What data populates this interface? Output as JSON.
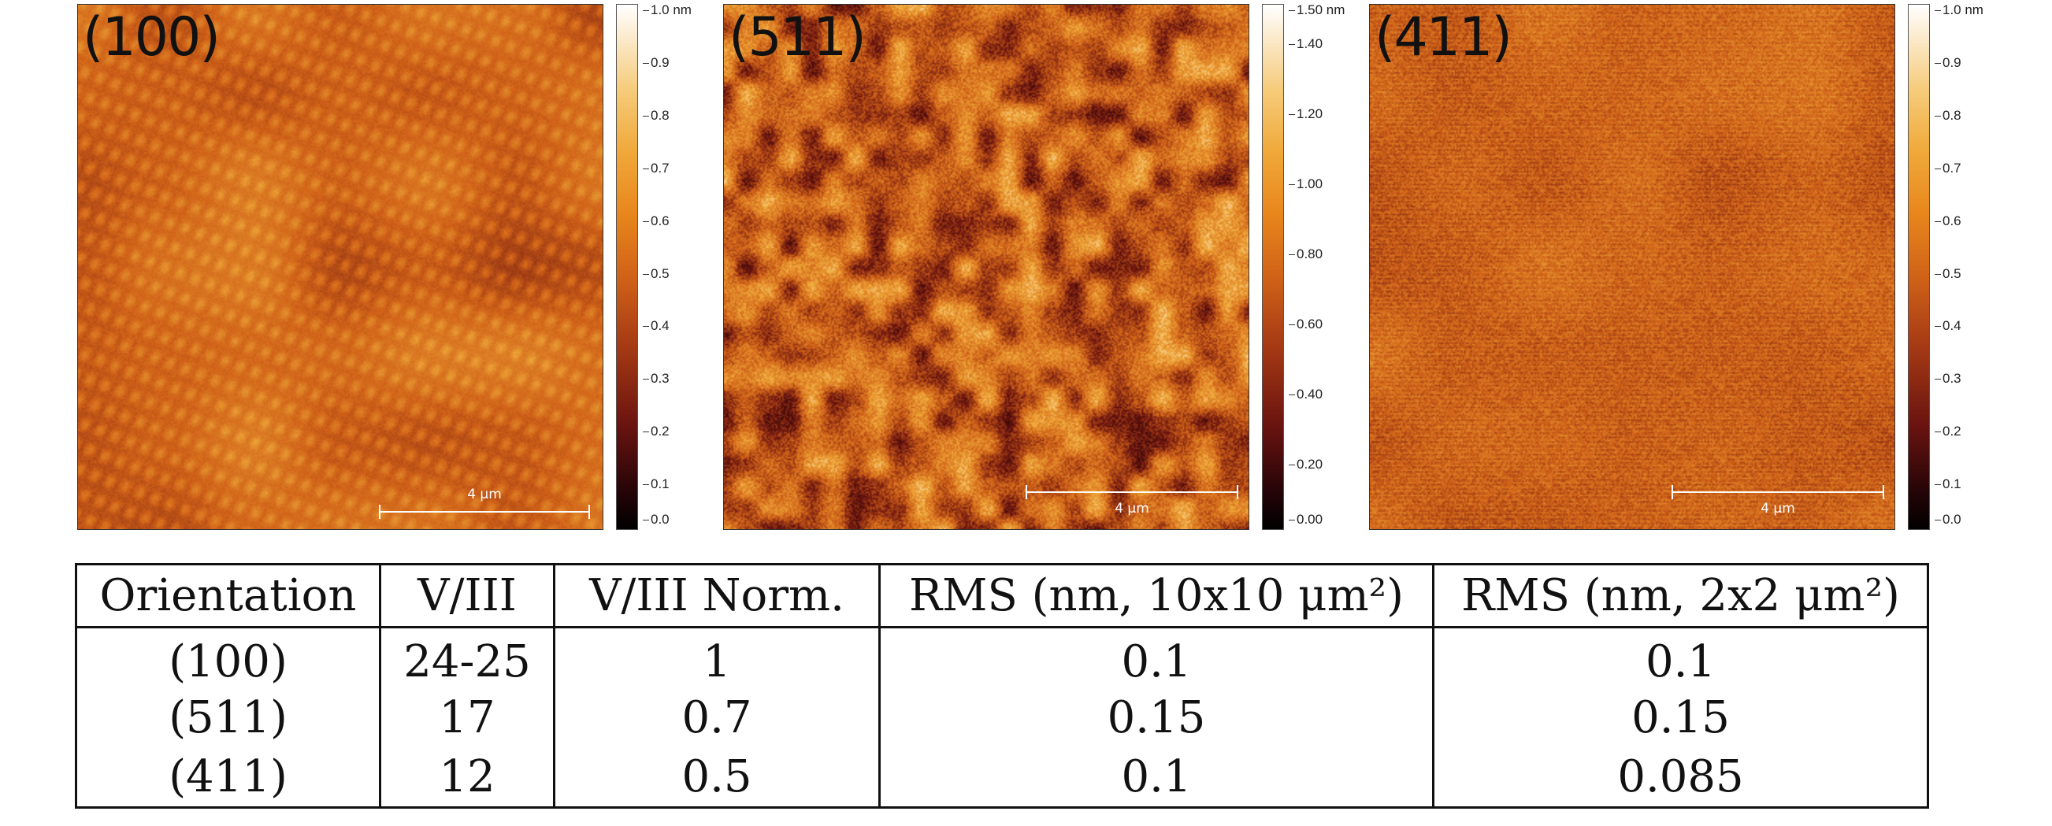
{
  "figure": {
    "panels": [
      {
        "label": "(100)",
        "scale_bar": "4 µm",
        "colorbar_top": "1.0 nm",
        "colorbar_ticks": [
          "0.9",
          "0.8",
          "0.7",
          "0.6",
          "0.5",
          "0.4",
          "0.3",
          "0.2",
          "0.1",
          "0.0"
        ],
        "texture": "terraces"
      },
      {
        "label": "(511)",
        "scale_bar": "4 µm",
        "colorbar_top": "1.50 nm",
        "colorbar_ticks": [
          "1.40",
          "1.20",
          "1.00",
          "0.80",
          "0.60",
          "0.40",
          "0.20",
          "0.00"
        ],
        "texture": "mottled"
      },
      {
        "label": "(411)",
        "scale_bar": "4 µm",
        "colorbar_top": "1.0 nm",
        "colorbar_ticks": [
          "0.9",
          "0.8",
          "0.7",
          "0.6",
          "0.5",
          "0.4",
          "0.3",
          "0.2",
          "0.1",
          "0.0"
        ],
        "texture": "streaky"
      }
    ],
    "colormap": [
      "#000000",
      "#6b1410",
      "#d06218",
      "#f0a93a",
      "#ffffff"
    ]
  },
  "table": {
    "headers": [
      "Orientation",
      "V/III",
      "V/III Norm.",
      "RMS (nm, 10x10 μm²)",
      "RMS (nm, 2x2 μm²)"
    ],
    "rows": [
      [
        "(100)",
        "24-25",
        "1",
        "0.1",
        "0.1"
      ],
      [
        "(511)",
        "17",
        "0.7",
        "0.15",
        "0.15"
      ],
      [
        "(411)",
        "12",
        "0.5",
        "0.1",
        "0.085"
      ]
    ]
  }
}
